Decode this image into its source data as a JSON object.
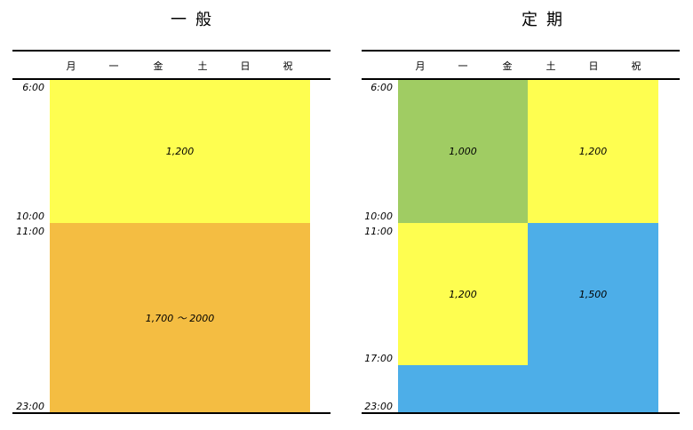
{
  "panels": [
    {
      "title": "一般",
      "days": [
        "月",
        "一",
        "金",
        "土",
        "日",
        "祝"
      ],
      "times": [
        "6:00",
        "10:00",
        "11:00",
        "23:00"
      ],
      "blocks": [
        {
          "label": "1,200"
        },
        {
          "label": "1,700 ～ 2000"
        }
      ]
    },
    {
      "title": "定期",
      "days": [
        "月",
        "一",
        "金",
        "土",
        "日",
        "祝"
      ],
      "times": [
        "6:00",
        "10:00",
        "11:00",
        "17:00",
        "23:00"
      ],
      "blocks": [
        {
          "label": "1,000"
        },
        {
          "label": "1,200"
        },
        {
          "label": "1,200"
        },
        {
          "label": "1,500"
        }
      ]
    }
  ]
}
